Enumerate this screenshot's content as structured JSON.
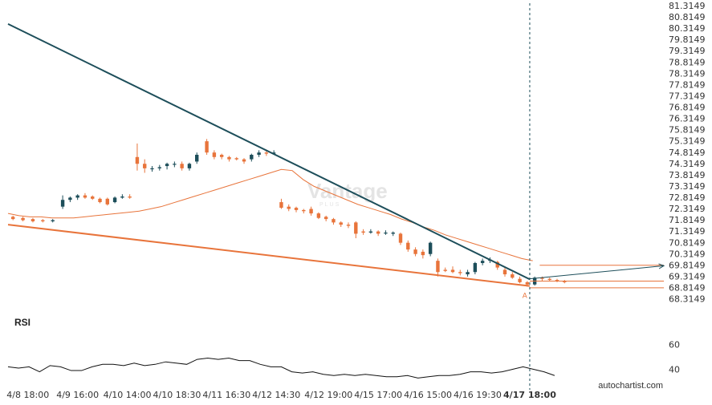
{
  "chart_data": {
    "type": "candlestick",
    "colors": {
      "up": "#1d4e5a",
      "down": "#e8743b",
      "ma": "#e8743b",
      "resistance": "#1d4e5a",
      "support": "#e8743b",
      "rsi": "#111111",
      "marker": "#1d4e5a"
    },
    "y_ticks": [
      "81.3149",
      "80.8149",
      "80.3149",
      "79.8149",
      "79.3149",
      "78.8149",
      "78.3149",
      "77.8149",
      "77.3149",
      "76.8149",
      "76.3149",
      "75.8149",
      "75.3149",
      "74.8149",
      "74.3149",
      "73.8149",
      "73.3149",
      "72.8149",
      "72.3149",
      "71.8149",
      "71.3149",
      "70.8149",
      "70.3149",
      "69.8149",
      "69.3149",
      "68.8149",
      "68.3149"
    ],
    "ylim": [
      68.05,
      81.35
    ],
    "x_ticks": [
      {
        "label": "4/8 18:00",
        "i": 8
      },
      {
        "label": "4/9 16:00",
        "i": 28
      },
      {
        "label": "4/10 14:00",
        "i": 48
      },
      {
        "label": "4/10 18:30",
        "i": 68
      },
      {
        "label": "4/11 16:30",
        "i": 88
      },
      {
        "label": "4/12 14:30",
        "i": 108
      },
      {
        "label": "4/12 19:00",
        "i": 129
      },
      {
        "label": "4/15 17:00",
        "i": 149
      },
      {
        "label": "4/16 15:00",
        "i": 169
      },
      {
        "label": "4/16 19:30",
        "i": 189
      },
      {
        "label": "4/17 18:00",
        "i": 210,
        "highlight": true
      }
    ],
    "marker_index": 210,
    "resistance": {
      "i0": 0,
      "y0": 80.5,
      "i1": 210,
      "y1": 69.18
    },
    "support": {
      "i0": 0,
      "y0": 71.6,
      "i1": 210,
      "y1": 68.88
    },
    "forecast": {
      "i0": 210,
      "y0": 69.2,
      "i1": 264,
      "y1": 69.78
    },
    "levels": [
      {
        "name": "upper",
        "value": 69.8,
        "i0": 214,
        "i1": 264
      },
      {
        "name": "mid",
        "value": 69.1,
        "i0": 210,
        "i1": 264
      },
      {
        "name": "lower",
        "value": 68.8,
        "i0": 210,
        "i1": 264
      }
    ],
    "point_label": {
      "text": "A",
      "i": 208,
      "y": 68.82
    },
    "ma_values": [
      72.1,
      72.0,
      71.95,
      71.95,
      71.9,
      71.9,
      71.9,
      71.95,
      72.0,
      72.05,
      72.1,
      72.15,
      72.2,
      72.3,
      72.4,
      72.55,
      72.7,
      72.85,
      73.0,
      73.15,
      73.3,
      73.45,
      73.6,
      73.75,
      73.9,
      74.05,
      74.0,
      73.6,
      73.3,
      73.1,
      72.9,
      72.7,
      72.5,
      72.35,
      72.2,
      72.05,
      71.85,
      71.7,
      71.5,
      71.35,
      71.15,
      71.0,
      70.85,
      70.7,
      70.55,
      70.4,
      70.25,
      70.1,
      70.0
    ],
    "ma_start": 0,
    "ma_step": 4.4,
    "rsi": {
      "ticks": [
        60,
        40
      ],
      "ylim": [
        30,
        70
      ],
      "values": [
        42,
        41,
        42,
        38,
        43,
        42,
        39,
        39,
        42,
        44,
        44,
        43,
        45,
        43,
        44,
        46,
        45,
        44,
        48,
        49,
        48,
        49,
        47,
        47,
        44,
        42,
        42,
        38,
        37,
        38,
        36,
        35,
        36,
        35,
        36,
        35,
        34,
        34,
        35,
        33,
        34,
        35,
        35,
        36,
        38,
        38,
        37,
        38,
        40,
        42,
        40,
        38,
        35
      ]
    },
    "candles": [
      {
        "i": 2,
        "o": 71.95,
        "c": 71.85,
        "h": 72.0,
        "l": 71.8
      },
      {
        "i": 6,
        "o": 71.9,
        "c": 71.8,
        "h": 71.95,
        "l": 71.75
      },
      {
        "i": 10,
        "o": 71.85,
        "c": 71.75,
        "h": 71.9,
        "l": 71.7
      },
      {
        "i": 14,
        "o": 71.8,
        "c": 71.75,
        "h": 71.85,
        "l": 71.7
      },
      {
        "i": 18,
        "o": 71.75,
        "c": 71.8,
        "h": 71.85,
        "l": 71.7
      },
      {
        "i": 22,
        "o": 72.4,
        "c": 72.7,
        "h": 72.9,
        "l": 72.3
      },
      {
        "i": 25,
        "o": 72.7,
        "c": 72.8,
        "h": 72.85,
        "l": 72.6
      },
      {
        "i": 28,
        "o": 72.8,
        "c": 72.9,
        "h": 72.95,
        "l": 72.7
      },
      {
        "i": 31,
        "o": 72.9,
        "c": 72.8,
        "h": 73.0,
        "l": 72.75
      },
      {
        "i": 34,
        "o": 72.85,
        "c": 72.75,
        "h": 72.9,
        "l": 72.7
      },
      {
        "i": 37,
        "o": 72.75,
        "c": 72.6,
        "h": 72.8,
        "l": 72.55
      },
      {
        "i": 40,
        "o": 72.75,
        "c": 72.5,
        "h": 72.8,
        "l": 72.45
      },
      {
        "i": 43,
        "o": 72.6,
        "c": 72.8,
        "h": 72.85,
        "l": 72.55
      },
      {
        "i": 46,
        "o": 72.8,
        "c": 72.85,
        "h": 72.95,
        "l": 72.75
      },
      {
        "i": 49,
        "o": 72.85,
        "c": 72.8,
        "h": 72.95,
        "l": 72.75
      },
      {
        "i": 52,
        "o": 74.6,
        "c": 74.3,
        "h": 75.2,
        "l": 74.0
      },
      {
        "i": 55,
        "o": 74.3,
        "c": 74.1,
        "h": 74.5,
        "l": 73.9
      },
      {
        "i": 58,
        "o": 74.1,
        "c": 74.1,
        "h": 74.2,
        "l": 73.95
      },
      {
        "i": 61,
        "o": 74.1,
        "c": 74.15,
        "h": 74.25,
        "l": 74.0
      },
      {
        "i": 64,
        "o": 74.2,
        "c": 74.3,
        "h": 74.35,
        "l": 74.05
      },
      {
        "i": 67,
        "o": 74.3,
        "c": 74.3,
        "h": 74.4,
        "l": 74.15
      },
      {
        "i": 70,
        "o": 74.3,
        "c": 74.1,
        "h": 74.4,
        "l": 74.0
      },
      {
        "i": 73,
        "o": 74.1,
        "c": 74.3,
        "h": 74.35,
        "l": 74.0
      },
      {
        "i": 76,
        "o": 74.4,
        "c": 74.7,
        "h": 74.8,
        "l": 74.3
      },
      {
        "i": 80,
        "o": 75.3,
        "c": 74.8,
        "h": 75.4,
        "l": 74.7
      },
      {
        "i": 83,
        "o": 74.8,
        "c": 74.6,
        "h": 74.9,
        "l": 74.5
      },
      {
        "i": 86,
        "o": 74.7,
        "c": 74.6,
        "h": 74.75,
        "l": 74.5
      },
      {
        "i": 89,
        "o": 74.6,
        "c": 74.5,
        "h": 74.65,
        "l": 74.4
      },
      {
        "i": 92,
        "o": 74.55,
        "c": 74.5,
        "h": 74.6,
        "l": 74.45
      },
      {
        "i": 95,
        "o": 74.5,
        "c": 74.4,
        "h": 74.55,
        "l": 74.3
      },
      {
        "i": 98,
        "o": 74.5,
        "c": 74.7,
        "h": 74.75,
        "l": 74.4
      },
      {
        "i": 101,
        "o": 74.7,
        "c": 74.8,
        "h": 74.9,
        "l": 74.6
      },
      {
        "i": 104,
        "o": 74.8,
        "c": 74.75,
        "h": 74.9,
        "l": 74.65
      },
      {
        "i": 107,
        "o": 74.75,
        "c": 74.8,
        "h": 74.9,
        "l": 74.7
      },
      {
        "i": 110,
        "o": 72.6,
        "c": 72.35,
        "h": 72.75,
        "l": 72.3
      },
      {
        "i": 113,
        "o": 72.4,
        "c": 72.3,
        "h": 72.5,
        "l": 72.2
      },
      {
        "i": 116,
        "o": 72.35,
        "c": 72.25,
        "h": 72.4,
        "l": 72.15
      },
      {
        "i": 119,
        "o": 72.25,
        "c": 72.2,
        "h": 72.3,
        "l": 72.1
      },
      {
        "i": 122,
        "o": 72.3,
        "c": 72.1,
        "h": 72.4,
        "l": 72.0
      },
      {
        "i": 125,
        "o": 72.1,
        "c": 71.9,
        "h": 72.15,
        "l": 71.85
      },
      {
        "i": 128,
        "o": 71.95,
        "c": 71.85,
        "h": 72.0,
        "l": 71.75
      },
      {
        "i": 131,
        "o": 71.85,
        "c": 71.7,
        "h": 71.9,
        "l": 71.6
      },
      {
        "i": 134,
        "o": 71.7,
        "c": 71.6,
        "h": 71.75,
        "l": 71.5
      },
      {
        "i": 137,
        "o": 71.6,
        "c": 71.55,
        "h": 71.7,
        "l": 71.45
      },
      {
        "i": 140,
        "o": 71.7,
        "c": 71.2,
        "h": 71.75,
        "l": 71.0
      },
      {
        "i": 143,
        "o": 71.3,
        "c": 71.25,
        "h": 71.4,
        "l": 71.15
      },
      {
        "i": 146,
        "o": 71.25,
        "c": 71.3,
        "h": 71.4,
        "l": 71.2
      },
      {
        "i": 149,
        "o": 71.3,
        "c": 71.2,
        "h": 71.35,
        "l": 71.1
      },
      {
        "i": 152,
        "o": 71.25,
        "c": 71.25,
        "h": 71.35,
        "l": 71.15
      },
      {
        "i": 155,
        "o": 71.2,
        "c": 71.25,
        "h": 71.3,
        "l": 71.1
      },
      {
        "i": 158,
        "o": 71.2,
        "c": 70.8,
        "h": 71.25,
        "l": 70.7
      },
      {
        "i": 161,
        "o": 70.8,
        "c": 70.5,
        "h": 70.9,
        "l": 70.4
      },
      {
        "i": 164,
        "o": 70.5,
        "c": 70.3,
        "h": 70.6,
        "l": 70.2
      },
      {
        "i": 167,
        "o": 70.4,
        "c": 70.25,
        "h": 70.5,
        "l": 70.1
      },
      {
        "i": 170,
        "o": 70.3,
        "c": 70.8,
        "h": 70.85,
        "l": 70.2
      },
      {
        "i": 173,
        "o": 70.0,
        "c": 69.5,
        "h": 70.1,
        "l": 69.3
      },
      {
        "i": 176,
        "o": 69.6,
        "c": 69.55,
        "h": 69.7,
        "l": 69.5
      },
      {
        "i": 179,
        "o": 69.6,
        "c": 69.5,
        "h": 69.75,
        "l": 69.45
      },
      {
        "i": 182,
        "o": 69.5,
        "c": 69.45,
        "h": 69.6,
        "l": 69.35
      },
      {
        "i": 185,
        "o": 69.4,
        "c": 69.5,
        "h": 69.6,
        "l": 69.3
      },
      {
        "i": 188,
        "o": 69.5,
        "c": 69.9,
        "h": 69.95,
        "l": 69.4
      },
      {
        "i": 191,
        "o": 69.9,
        "c": 70.0,
        "h": 70.1,
        "l": 69.8
      },
      {
        "i": 194,
        "o": 70.0,
        "c": 70.05,
        "h": 70.15,
        "l": 69.9
      },
      {
        "i": 197,
        "o": 69.95,
        "c": 69.7,
        "h": 70.0,
        "l": 69.6
      },
      {
        "i": 200,
        "o": 69.6,
        "c": 69.4,
        "h": 69.7,
        "l": 69.3
      },
      {
        "i": 203,
        "o": 69.4,
        "c": 69.25,
        "h": 69.5,
        "l": 69.2
      },
      {
        "i": 206,
        "o": 69.2,
        "c": 69.05,
        "h": 69.3,
        "l": 69.0
      },
      {
        "i": 209,
        "o": 69.05,
        "c": 68.95,
        "h": 69.1,
        "l": 68.85
      },
      {
        "i": 212,
        "o": 68.95,
        "c": 69.25,
        "h": 69.3,
        "l": 68.9
      },
      {
        "i": 215,
        "o": 69.25,
        "c": 69.2,
        "h": 69.3,
        "l": 69.1
      },
      {
        "i": 218,
        "o": 69.2,
        "c": 69.15,
        "h": 69.25,
        "l": 69.1
      },
      {
        "i": 221,
        "o": 69.15,
        "c": 69.1,
        "h": 69.2,
        "l": 69.05
      },
      {
        "i": 224,
        "o": 69.1,
        "c": 69.05,
        "h": 69.15,
        "l": 69.0
      }
    ]
  },
  "labels": {
    "rsi_panel": "RSI",
    "brand": "autochartist.com",
    "watermark": "Vantage",
    "watermark_sub": "PLUS"
  }
}
